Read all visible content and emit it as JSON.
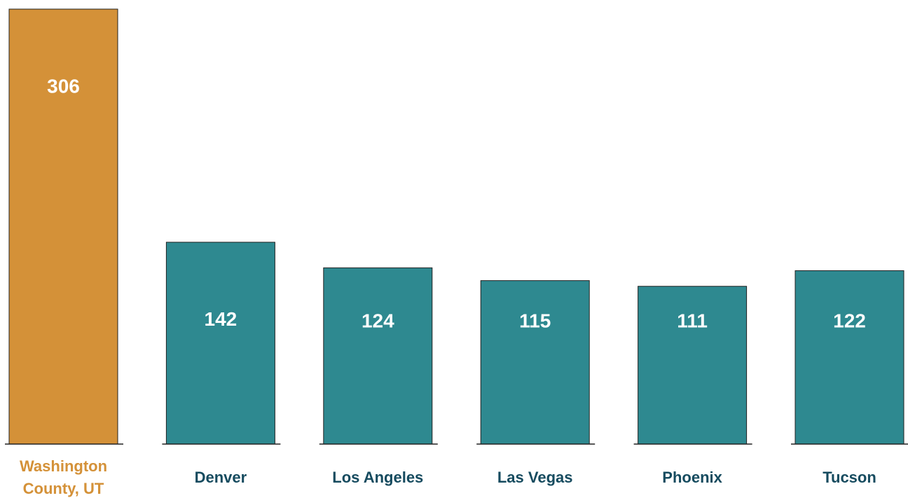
{
  "chart_data": {
    "type": "bar",
    "categories": [
      "Washington County, UT",
      "Denver",
      "Los Angeles",
      "Las Vegas",
      "Phoenix",
      "Tucson"
    ],
    "values": [
      306,
      142,
      124,
      115,
      111,
      122
    ],
    "colors": [
      "#d49138",
      "#2e8990",
      "#2e8990",
      "#2e8990",
      "#2e8990",
      "#2e8990"
    ],
    "label_colors": [
      "#d49138",
      "#164b5f",
      "#164b5f",
      "#164b5f",
      "#164b5f",
      "#164b5f"
    ]
  }
}
